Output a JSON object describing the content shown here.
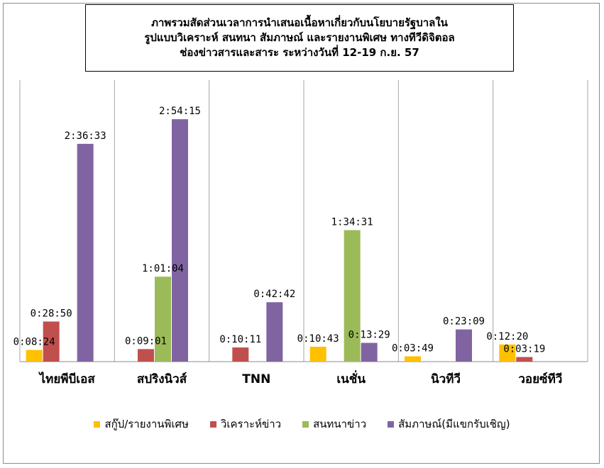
{
  "chart_data": {
    "type": "bar",
    "title_lines": [
      "ภาพรวมสัดส่วนเวลาการนำเสนอเนื้อหาเกี่ยวกับนโยบายรัฐบาลใน",
      "รูปแบบวิเคราะห์ สนทนา สัมภาษณ์ และรายงานพิเศษ ทางทีวีดิจิตอล",
      "ช่องข่าวสารและสาระ ระหว่างวันที่ 12-19 ก.ย. 57"
    ],
    "categories": [
      "ไทยพีบีเอส",
      "สปริงนิวส์",
      "TNN",
      "เนชั่น",
      "นิวทีวี",
      "วอยซ์ทีวี"
    ],
    "ylim_seconds": [
      0,
      11000
    ],
    "grid": false,
    "legend_position": "bottom",
    "series": [
      {
        "name": "สกู๊ป/รายงานพิเศษ",
        "color": "#ffc000",
        "values": [
          504,
          null,
          null,
          643,
          229,
          740
        ],
        "labels": [
          "0:08:24",
          "",
          "",
          "0:10:43",
          "0:03:49",
          "0:12:20"
        ]
      },
      {
        "name": "วิเคราะห์ข่าว",
        "color": "#c0504d",
        "values": [
          1730,
          541,
          611,
          null,
          null,
          199
        ],
        "labels": [
          "0:28:50",
          "0:09:01",
          "0:10:11",
          "",
          "",
          "0:03:19"
        ]
      },
      {
        "name": "สนทนาข่าว",
        "color": "#9bbb59",
        "values": [
          null,
          3664,
          null,
          5671,
          null,
          null
        ],
        "labels": [
          "",
          "1:01:04",
          "",
          "1:34:31",
          "",
          ""
        ]
      },
      {
        "name": "สัมภาษณ์(มีแขกรับเชิญ)",
        "color": "#8064a2",
        "values": [
          9393,
          10455,
          2562,
          809,
          1389,
          null
        ],
        "labels": [
          "2:36:33",
          "2:54:15",
          "0:42:42",
          "0:13:29",
          "0:23:09",
          ""
        ]
      }
    ]
  }
}
